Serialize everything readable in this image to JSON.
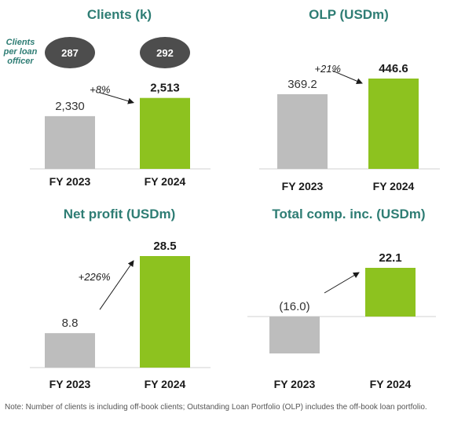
{
  "colors": {
    "title": "#2E7D74",
    "bar_prior": "#BDBDBD",
    "bar_current": "#8DC21F",
    "axis": "#D0D0D0",
    "bubble": "#4D4D4D"
  },
  "chart_data": [
    {
      "id": "clients",
      "type": "bar",
      "title": "Clients (k)",
      "categories": [
        "FY 2023",
        "FY 2024"
      ],
      "values": [
        2330,
        2513
      ],
      "value_labels": [
        "2,330",
        "2,513"
      ],
      "change_label": "+8%",
      "ylim": [
        1800,
        2550
      ],
      "grid": false,
      "side_metric": {
        "label_lines": [
          "Clients",
          "per loan",
          "officer"
        ],
        "values": [
          "287",
          "292"
        ]
      }
    },
    {
      "id": "olp",
      "type": "bar",
      "title": "OLP (USDm)",
      "categories": [
        "FY 2023",
        "FY 2024"
      ],
      "values": [
        369.2,
        446.6
      ],
      "value_labels": [
        "369.2",
        "446.6"
      ],
      "change_label": "+21%",
      "ylim": [
        0,
        446.6
      ],
      "grid": false
    },
    {
      "id": "net_profit",
      "type": "bar",
      "title": "Net profit (USDm)",
      "categories": [
        "FY 2023",
        "FY 2024"
      ],
      "values": [
        8.8,
        28.5
      ],
      "value_labels": [
        "8.8",
        "28.5"
      ],
      "change_label": "+226%",
      "ylim": [
        0,
        28.5
      ],
      "grid": false
    },
    {
      "id": "total_comp_inc",
      "type": "bar",
      "title": "Total comp. inc. (USDm)",
      "categories": [
        "FY 2023",
        "FY 2024"
      ],
      "values": [
        -16.0,
        22.1
      ],
      "value_labels": [
        "(16.0)",
        "22.1"
      ],
      "change_label": "",
      "ylim": [
        -16.0,
        22.1
      ],
      "grid": false
    }
  ],
  "note": "Note: Number of clients is including off-book clients; Outstanding Loan Portfolio (OLP) includes the off-book loan portfolio."
}
